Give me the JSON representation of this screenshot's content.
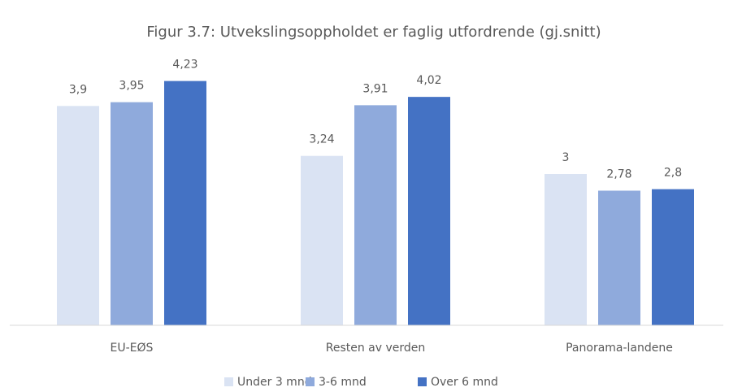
{
  "chart_data": {
    "type": "bar",
    "title": "Figur 3.7: Utvekslingsoppholdet er faglig utfordrende (gj.snitt)",
    "categories": [
      "EU-EØS",
      "Resten av verden",
      "Panorama-landene"
    ],
    "series": [
      {
        "name": "Under 3 mnd",
        "color": "#dae3f3",
        "values": [
          3.9,
          3.24,
          3
        ],
        "value_labels": [
          "3,9",
          "3,24",
          "3"
        ]
      },
      {
        "name": "3-6 mnd",
        "color": "#8faadc",
        "values": [
          3.95,
          3.91,
          2.78
        ],
        "value_labels": [
          "3,95",
          "3,91",
          "2,78"
        ]
      },
      {
        "name": "Over 6 mnd",
        "color": "#4472c4",
        "values": [
          4.23,
          4.02,
          2.8
        ],
        "value_labels": [
          "4,23",
          "4,02",
          "2,8"
        ]
      }
    ],
    "ylim": [
      1,
      5
    ],
    "legend": "bottom"
  }
}
